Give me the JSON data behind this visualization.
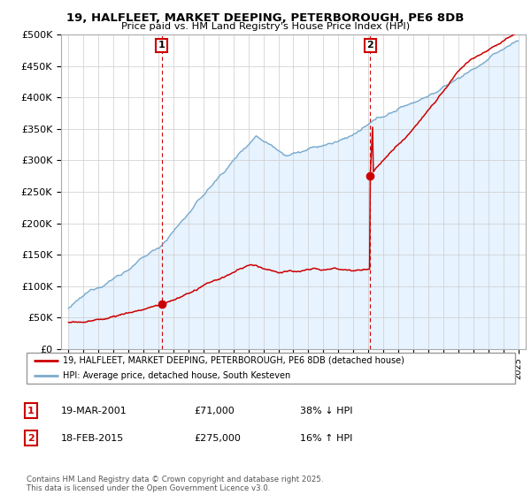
{
  "title1": "19, HALFLEET, MARKET DEEPING, PETERBOROUGH, PE6 8DB",
  "title2": "Price paid vs. HM Land Registry's House Price Index (HPI)",
  "ylabel_ticks": [
    "£0",
    "£50K",
    "£100K",
    "£150K",
    "£200K",
    "£250K",
    "£300K",
    "£350K",
    "£400K",
    "£450K",
    "£500K"
  ],
  "ytick_values": [
    0,
    50000,
    100000,
    150000,
    200000,
    250000,
    300000,
    350000,
    400000,
    450000,
    500000
  ],
  "xlim": [
    1994.5,
    2025.5
  ],
  "ylim": [
    0,
    500000
  ],
  "marker1_x": 2001.22,
  "marker1_y": 71000,
  "marker2_x": 2015.13,
  "marker2_y": 275000,
  "legend_line1": "19, HALFLEET, MARKET DEEPING, PETERBOROUGH, PE6 8DB (detached house)",
  "legend_line2": "HPI: Average price, detached house, South Kesteven",
  "table_row1_date": "19-MAR-2001",
  "table_row1_price": "£71,000",
  "table_row1_hpi": "38% ↓ HPI",
  "table_row2_date": "18-FEB-2015",
  "table_row2_price": "£275,000",
  "table_row2_hpi": "16% ↑ HPI",
  "copyright_text": "Contains HM Land Registry data © Crown copyright and database right 2025.\nThis data is licensed under the Open Government Licence v3.0.",
  "red_color": "#cc0000",
  "blue_color": "#7aaacc",
  "blue_fill": "#ddeeff",
  "bg_color": "#ffffff",
  "grid_color": "#cccccc"
}
